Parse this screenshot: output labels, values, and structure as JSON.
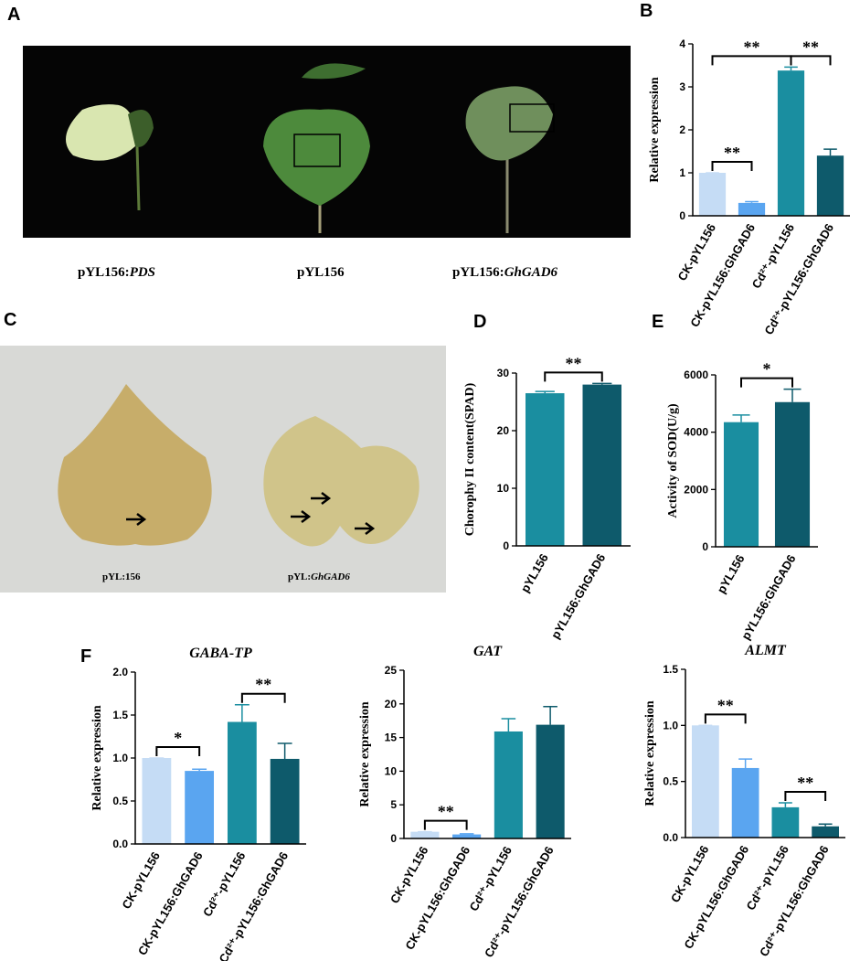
{
  "panel_labels": [
    "A",
    "B",
    "C",
    "D",
    "E",
    "F"
  ],
  "photo_a": {
    "labels": [
      [
        "pYL156:",
        "PDS"
      ],
      [
        "pYL156"
      ],
      [
        "pYL156:",
        "GhGAD6"
      ]
    ]
  },
  "photo_c": {
    "labels": [
      [
        "pYL:156"
      ],
      [
        "pYL:",
        "GhGAD6"
      ]
    ]
  },
  "chart_data": [
    {
      "type": "bar",
      "ylabel": "Relative expression",
      "categories": [
        "CK-pYL156",
        "CK-pYL156:GhGAD6",
        "Cd²⁺-pYL156",
        "Cd²⁺-pYL156:GhGAD6"
      ],
      "colors": [
        "#c5dcf5",
        "#5aa5f0",
        "#1a8ea0",
        "#0e5a6b"
      ],
      "values": [
        1.0,
        0.3,
        3.38,
        1.4
      ],
      "errors": [
        0,
        0.03,
        0.08,
        0.15
      ],
      "ylim": [
        0,
        4
      ],
      "yticks": [
        0,
        1,
        2,
        3,
        4
      ],
      "annotations": [
        {
          "text": "**",
          "between": [
            0,
            1
          ]
        },
        {
          "text": "**",
          "between": [
            0,
            2
          ]
        },
        {
          "text": "**",
          "between": [
            2,
            3
          ]
        }
      ]
    },
    {
      "type": "bar",
      "ylabel": "Chorophy II content(SPAD)",
      "categories": [
        "pYL156",
        "pYL156:GhGAD6"
      ],
      "colors": [
        "#1a8ea0",
        "#0e5a6b"
      ],
      "values": [
        26.5,
        28.0
      ],
      "errors": [
        0.3,
        0.2
      ],
      "ylim": [
        0,
        30
      ],
      "yticks": [
        0,
        10,
        20,
        30
      ],
      "annotations": [
        {
          "text": "**",
          "between": [
            0,
            1
          ]
        }
      ]
    },
    {
      "type": "bar",
      "ylabel": "Activity of SOD(U/g)",
      "categories": [
        "pYL156",
        "pYL156:GhGAD6"
      ],
      "colors": [
        "#1a8ea0",
        "#0e5a6b"
      ],
      "values": [
        4350,
        5050
      ],
      "errors": [
        250,
        450
      ],
      "ylim": [
        0,
        6000
      ],
      "yticks": [
        0,
        2000,
        4000,
        6000
      ],
      "annotations": [
        {
          "text": "*",
          "between": [
            0,
            1
          ]
        }
      ]
    },
    {
      "type": "bar",
      "title": "GABA-TP",
      "ylabel": "Relative expression",
      "categories": [
        "CK-pYL156",
        "CK-pYL156:GhGAD6",
        "Cd²⁺-pYL156",
        "Cd²⁺-pYL156:GhGAD6"
      ],
      "colors": [
        "#c5dcf5",
        "#5aa5f0",
        "#1a8ea0",
        "#0e5a6b"
      ],
      "values": [
        1.0,
        0.85,
        1.42,
        0.99
      ],
      "errors": [
        0,
        0.02,
        0.2,
        0.18
      ],
      "ylim": [
        0,
        2
      ],
      "yticks": [
        {
          "value": 0,
          "label": "0.0"
        },
        {
          "value": 0.5,
          "label": "0.5"
        },
        {
          "value": 1,
          "label": "1.0"
        },
        {
          "value": 1.5,
          "label": "1.5"
        },
        {
          "value": 2,
          "label": "2.0"
        }
      ],
      "annotations": [
        {
          "text": "*",
          "between": [
            0,
            1
          ]
        },
        {
          "text": "**",
          "between": [
            2,
            3
          ]
        }
      ]
    },
    {
      "type": "bar",
      "title": "GAT",
      "ylabel": "Relative expression",
      "categories": [
        "CK-pYL156",
        "CK-pYL156:GhGAD6",
        "Cd²⁺-pYL156",
        "Cd²⁺-pYL156:GhGAD6"
      ],
      "colors": [
        "#c5dcf5",
        "#5aa5f0",
        "#1a8ea0",
        "#0e5a6b"
      ],
      "values": [
        1.0,
        0.6,
        15.9,
        16.9
      ],
      "errors": [
        0,
        0.1,
        1.9,
        2.7
      ],
      "ylim": [
        0,
        25
      ],
      "yticks": [
        0,
        5,
        10,
        15,
        20,
        25
      ],
      "annotations": [
        {
          "text": "**",
          "between": [
            0,
            1
          ]
        }
      ]
    },
    {
      "type": "bar",
      "title": "ALMT",
      "ylabel": "Relative expression",
      "categories": [
        "CK-pYL156",
        "CK-pYL156:GhGAD6",
        "Cd²⁺-pYL156",
        "Cd²⁺-pYL156:GhGAD6"
      ],
      "colors": [
        "#c5dcf5",
        "#5aa5f0",
        "#1a8ea0",
        "#0e5a6b"
      ],
      "values": [
        1.0,
        0.62,
        0.27,
        0.1
      ],
      "errors": [
        0,
        0.08,
        0.04,
        0.02
      ],
      "ylim": [
        0,
        1.5
      ],
      "yticks": [
        {
          "value": 0,
          "label": "0.0"
        },
        {
          "value": 0.5,
          "label": "0.5"
        },
        {
          "value": 1,
          "label": "1.0"
        },
        {
          "value": 1.5,
          "label": "1.5"
        }
      ],
      "annotations": [
        {
          "text": "**",
          "between": [
            0,
            1
          ]
        },
        {
          "text": "**",
          "between": [
            2,
            3
          ]
        }
      ]
    }
  ]
}
